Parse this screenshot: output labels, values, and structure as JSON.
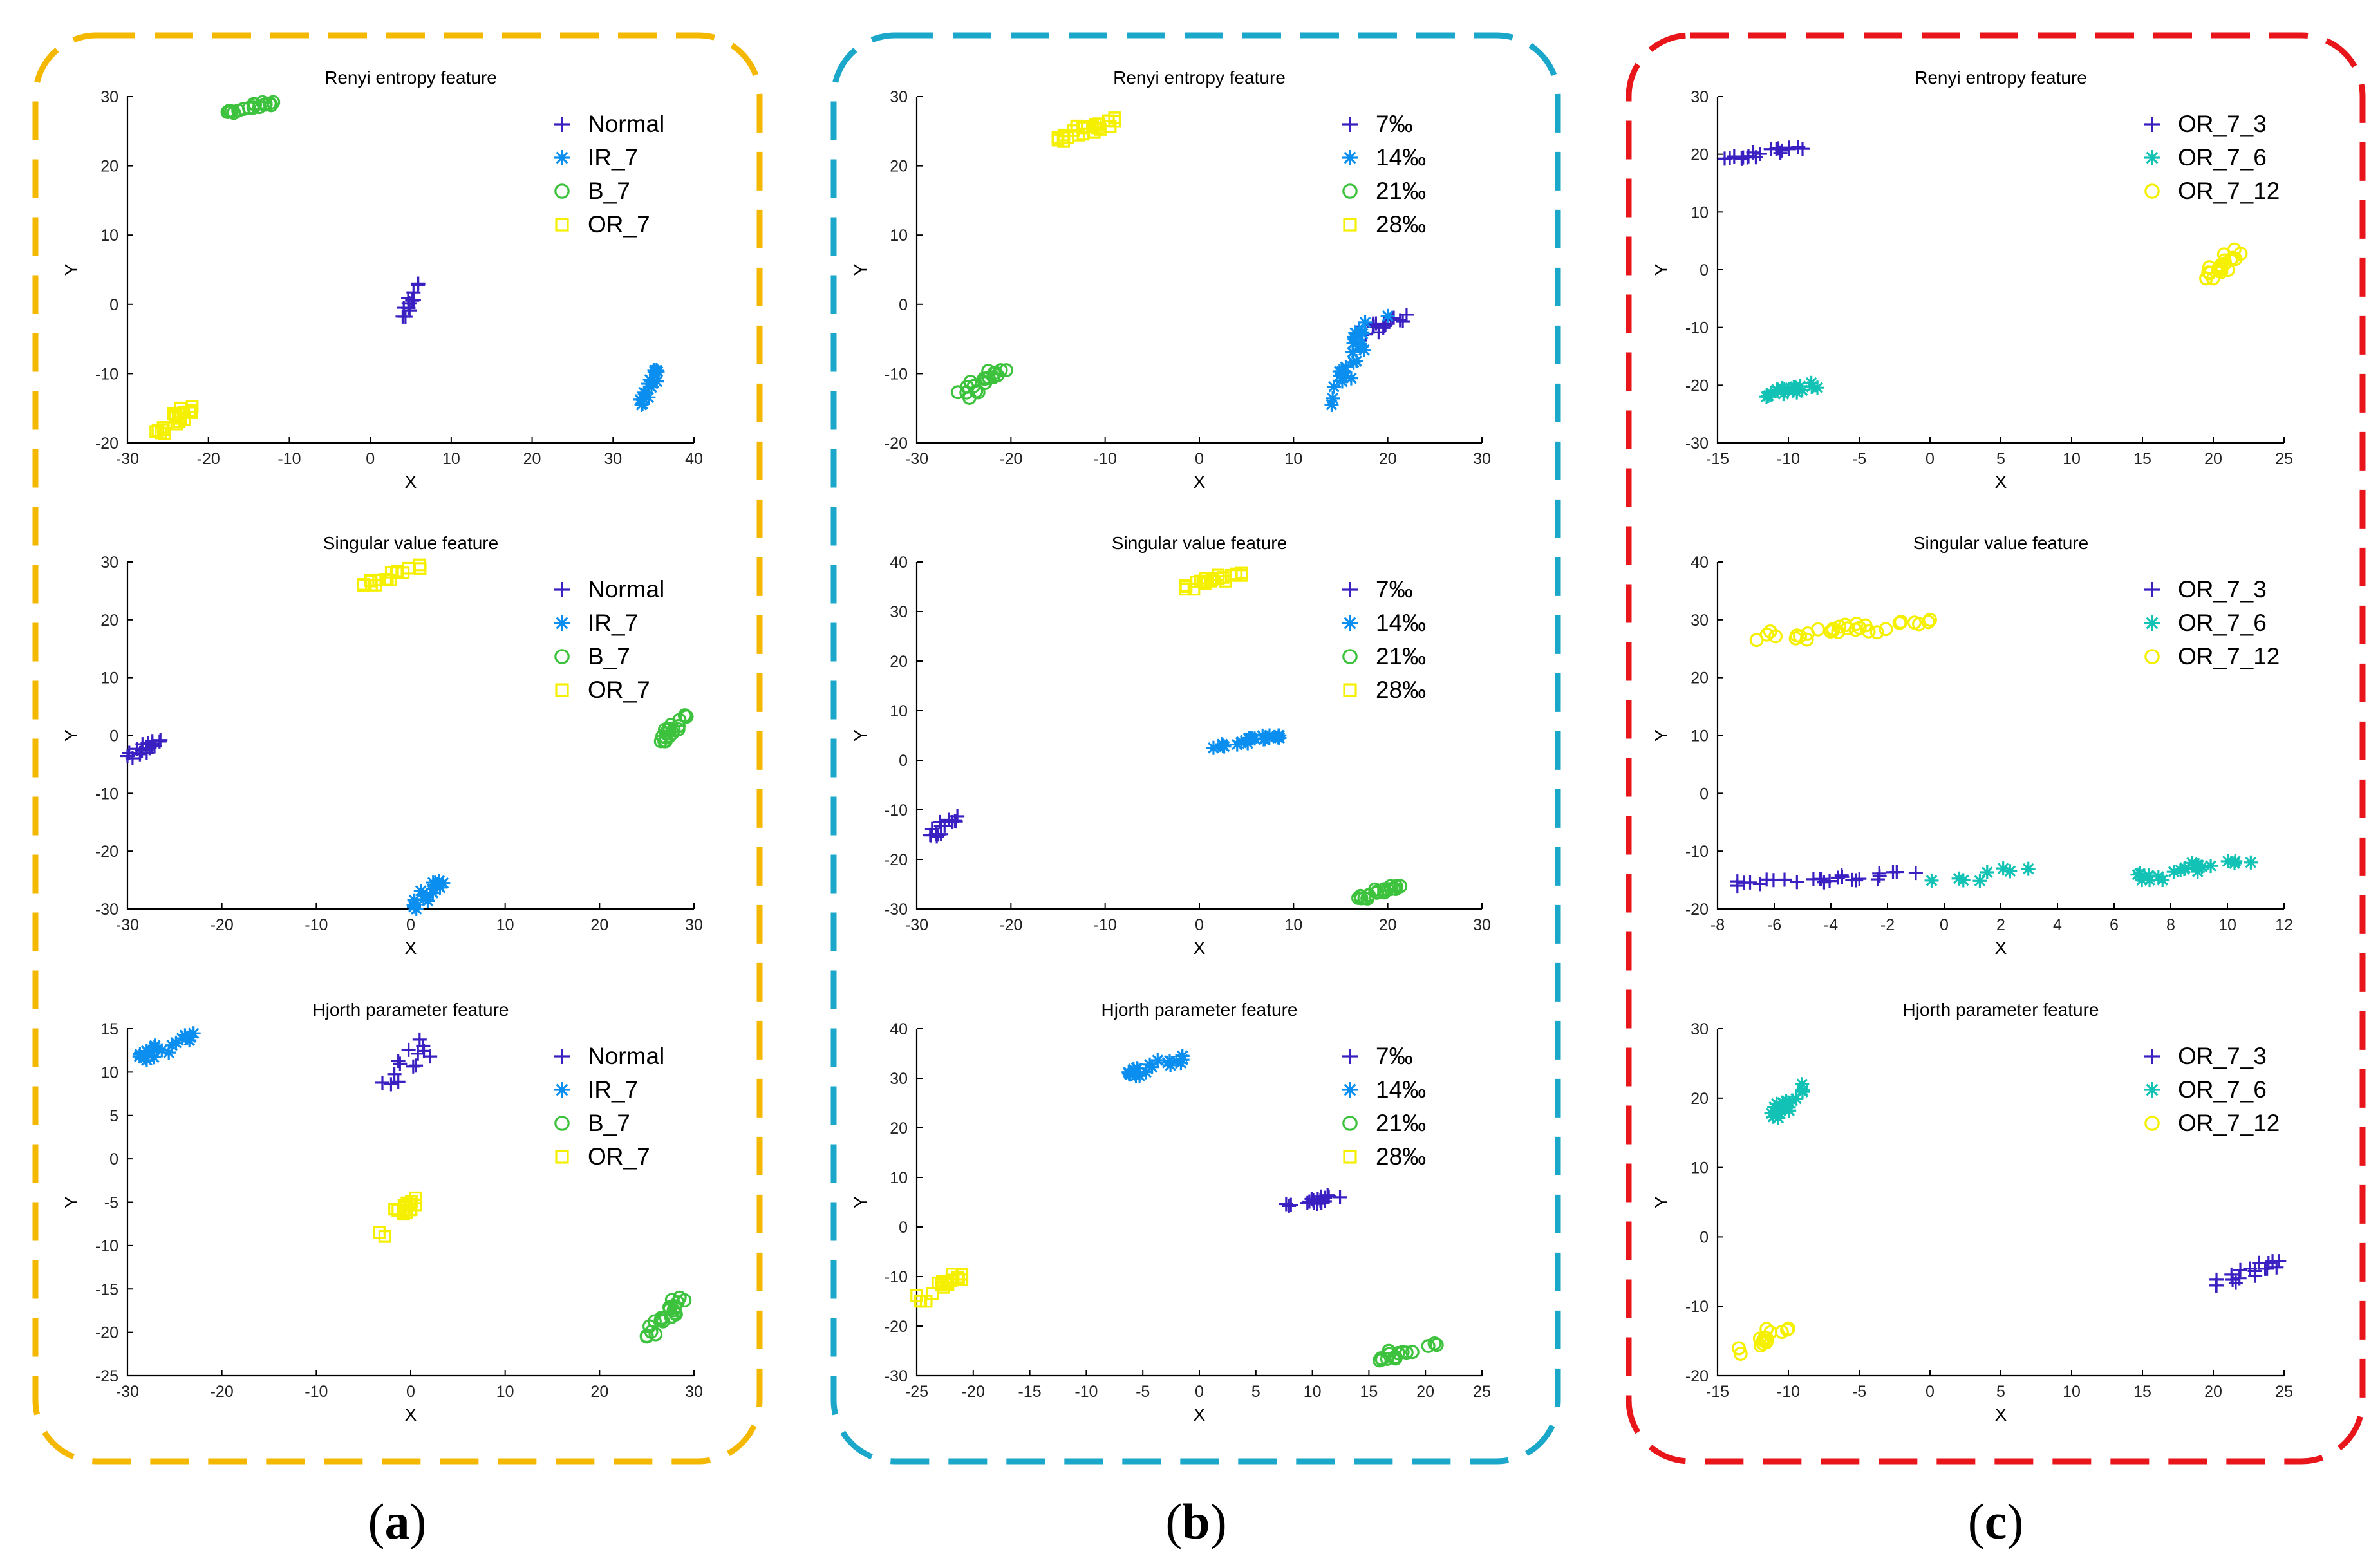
{
  "colors": {
    "frame_a": "#F5B800",
    "frame_b": "#1AA7C9",
    "frame_c": "#E8161B",
    "blue_dark": "#3A1FC1",
    "blue_light": "#0A8FF0",
    "green": "#3DC23D",
    "yellow": "#F5F000",
    "teal": "#11C2B5"
  },
  "panels": [
    {
      "caption_letter": "a"
    },
    {
      "caption_letter": "b"
    },
    {
      "caption_letter": "c"
    }
  ],
  "chart_data": [
    {
      "type": "scatter",
      "panel": 0,
      "row": 0,
      "title": "Renyi entropy feature",
      "xlabel": "X",
      "ylabel": "Y",
      "xlim": [
        -30,
        40
      ],
      "ylim": [
        -20,
        30
      ],
      "xticks": [
        -30,
        -20,
        -10,
        0,
        10,
        20,
        30,
        40
      ],
      "yticks": [
        -20,
        -10,
        0,
        10,
        20,
        30
      ],
      "legend": "top-right",
      "series": [
        {
          "name": "Normal",
          "marker": "plus",
          "color": "#3A1FC1",
          "clusters": [
            {
              "x": [
                4,
                6
              ],
              "y": [
                -2,
                3
              ],
              "n": 16
            }
          ]
        },
        {
          "name": "IR_7",
          "marker": "asterisk",
          "color": "#0A8FF0",
          "clusters": [
            {
              "x": [
                33,
                35.5
              ],
              "y": [
                -15,
                -9.5
              ],
              "n": 16
            }
          ]
        },
        {
          "name": "B_7",
          "marker": "circle",
          "color": "#3DC23D",
          "clusters": [
            {
              "x": [
                -18,
                -12
              ],
              "y": [
                27.5,
                29.2
              ],
              "n": 18
            }
          ]
        },
        {
          "name": "OR_7",
          "marker": "square",
          "color": "#F5F000",
          "clusters": [
            {
              "x": [
                -26.5,
                -22
              ],
              "y": [
                -19,
                -14.5
              ],
              "n": 20
            }
          ]
        }
      ]
    },
    {
      "type": "scatter",
      "panel": 0,
      "row": 1,
      "title": "Singular value feature",
      "xlabel": "X",
      "ylabel": "Y",
      "xlim": [
        -30,
        30
      ],
      "ylim": [
        -30,
        30
      ],
      "xticks": [
        -30,
        -20,
        -10,
        0,
        10,
        20,
        30
      ],
      "yticks": [
        -30,
        -20,
        -10,
        0,
        10,
        20,
        30
      ],
      "legend": "top-right",
      "series": [
        {
          "name": "Normal",
          "marker": "plus",
          "color": "#3A1FC1",
          "clusters": [
            {
              "x": [
                -30,
                -26
              ],
              "y": [
                -4,
                0
              ],
              "n": 18
            }
          ]
        },
        {
          "name": "IR_7",
          "marker": "asterisk",
          "color": "#0A8FF0",
          "clusters": [
            {
              "x": [
                0,
                3.5
              ],
              "y": [
                -30,
                -25
              ],
              "n": 16
            }
          ]
        },
        {
          "name": "B_7",
          "marker": "circle",
          "color": "#3DC23D",
          "clusters": [
            {
              "x": [
                26.5,
                29.5
              ],
              "y": [
                -1,
                3.5
              ],
              "n": 20
            }
          ]
        },
        {
          "name": "OR_7",
          "marker": "square",
          "color": "#F5F000",
          "clusters": [
            {
              "x": [
                -5,
                1
              ],
              "y": [
                26,
                29.5
              ],
              "n": 20
            }
          ]
        }
      ]
    },
    {
      "type": "scatter",
      "panel": 0,
      "row": 2,
      "title": "Hjorth parameter feature",
      "xlabel": "X",
      "ylabel": "Y",
      "xlim": [
        -30,
        30
      ],
      "ylim": [
        -25,
        15
      ],
      "xticks": [
        -30,
        -20,
        -10,
        0,
        10,
        20,
        30
      ],
      "yticks": [
        -25,
        -20,
        -15,
        -10,
        -5,
        0,
        5,
        10,
        15
      ],
      "legend": "top-right",
      "series": [
        {
          "name": "Normal",
          "marker": "plus",
          "color": "#3A1FC1",
          "clusters": [
            {
              "x": [
                -3,
                2.5
              ],
              "y": [
                8,
                14
              ],
              "n": 14
            }
          ]
        },
        {
          "name": "IR_7",
          "marker": "asterisk",
          "color": "#0A8FF0",
          "clusters": [
            {
              "x": [
                -29.5,
                -23
              ],
              "y": [
                11,
                14.5
              ],
              "n": 20
            }
          ]
        },
        {
          "name": "B_7",
          "marker": "circle",
          "color": "#3DC23D",
          "clusters": [
            {
              "x": [
                25,
                29
              ],
              "y": [
                -20.5,
                -16
              ],
              "n": 22
            }
          ]
        },
        {
          "name": "OR_7",
          "marker": "square",
          "color": "#F5F000",
          "clusters": [
            {
              "x": [
                -4,
                0.5
              ],
              "y": [
                -9,
                -4.5
              ],
              "n": 18
            }
          ]
        }
      ]
    },
    {
      "type": "scatter",
      "panel": 1,
      "row": 0,
      "title": "Renyi entropy feature",
      "xlabel": "X",
      "ylabel": "Y",
      "xlim": [
        -30,
        30
      ],
      "ylim": [
        -20,
        30
      ],
      "xticks": [
        -30,
        -20,
        -10,
        0,
        10,
        20,
        30
      ],
      "yticks": [
        -20,
        -10,
        0,
        10,
        20,
        30
      ],
      "legend": "top-right",
      "series": [
        {
          "name": "7‰",
          "marker": "plus",
          "color": "#3A1FC1",
          "clusters": [
            {
              "x": [
                16.5,
                22
              ],
              "y": [
                -4.5,
                -1.5
              ],
              "n": 18
            }
          ]
        },
        {
          "name": "14‰",
          "marker": "asterisk",
          "color": "#0A8FF0",
          "clusters": [
            {
              "x": [
                13.5,
                17.5
              ],
              "y": [
                -14.5,
                -5
              ],
              "n": 18
            },
            {
              "x": [
                16,
                20
              ],
              "y": [
                -5,
                -1
              ],
              "n": 8
            }
          ]
        },
        {
          "name": "21‰",
          "marker": "circle",
          "color": "#3DC23D",
          "clusters": [
            {
              "x": [
                -26,
                -20.5
              ],
              "y": [
                -13.5,
                -9.5
              ],
              "n": 20
            }
          ]
        },
        {
          "name": "28‰",
          "marker": "square",
          "color": "#F5F000",
          "clusters": [
            {
              "x": [
                -15,
                -9
              ],
              "y": [
                23.5,
                27
              ],
              "n": 24
            }
          ]
        }
      ]
    },
    {
      "type": "scatter",
      "panel": 1,
      "row": 1,
      "title": "Singular value feature",
      "xlabel": "X",
      "ylabel": "Y",
      "xlim": [
        -30,
        30
      ],
      "ylim": [
        -30,
        40
      ],
      "xticks": [
        -30,
        -20,
        -10,
        0,
        10,
        20,
        30
      ],
      "yticks": [
        -30,
        -20,
        -10,
        0,
        10,
        20,
        30,
        40
      ],
      "legend": "top-right",
      "series": [
        {
          "name": "7‰",
          "marker": "plus",
          "color": "#3A1FC1",
          "clusters": [
            {
              "x": [
                -29,
                -25
              ],
              "y": [
                -16,
                -11
              ],
              "n": 16
            }
          ]
        },
        {
          "name": "14‰",
          "marker": "asterisk",
          "color": "#0A8FF0",
          "clusters": [
            {
              "x": [
                1.5,
                8.5
              ],
              "y": [
                2.5,
                5
              ],
              "n": 22
            }
          ]
        },
        {
          "name": "21‰",
          "marker": "circle",
          "color": "#3DC23D",
          "clusters": [
            {
              "x": [
                16.5,
                22
              ],
              "y": [
                -28,
                -24.5
              ],
              "n": 20
            }
          ]
        },
        {
          "name": "28‰",
          "marker": "square",
          "color": "#F5F000",
          "clusters": [
            {
              "x": [
                -1.5,
                4.5
              ],
              "y": [
                34.5,
                38
              ],
              "n": 24
            }
          ]
        }
      ]
    },
    {
      "type": "scatter",
      "panel": 1,
      "row": 2,
      "title": "Hjorth parameter feature",
      "xlabel": "X",
      "ylabel": "Y",
      "xlim": [
        -25,
        25
      ],
      "ylim": [
        -30,
        40
      ],
      "xticks": [
        -25,
        -20,
        -15,
        -10,
        -5,
        0,
        5,
        10,
        15,
        20,
        25
      ],
      "yticks": [
        -30,
        -20,
        -10,
        0,
        10,
        20,
        30,
        40
      ],
      "legend": "top-right",
      "series": [
        {
          "name": "7‰",
          "marker": "plus",
          "color": "#3A1FC1",
          "clusters": [
            {
              "x": [
                6.5,
                12.5
              ],
              "y": [
                3.5,
                6.5
              ],
              "n": 18
            }
          ]
        },
        {
          "name": "14‰",
          "marker": "asterisk",
          "color": "#0A8FF0",
          "clusters": [
            {
              "x": [
                -7,
                -1.5
              ],
              "y": [
                30.5,
                34.5
              ],
              "n": 20
            }
          ]
        },
        {
          "name": "21‰",
          "marker": "circle",
          "color": "#3DC23D",
          "clusters": [
            {
              "x": [
                15.5,
                21
              ],
              "y": [
                -27,
                -23.5
              ],
              "n": 16
            }
          ]
        },
        {
          "name": "28‰",
          "marker": "square",
          "color": "#F5F000",
          "clusters": [
            {
              "x": [
                -25,
                -21
              ],
              "y": [
                -15,
                -9.5
              ],
              "n": 20
            }
          ]
        }
      ]
    },
    {
      "type": "scatter",
      "panel": 2,
      "row": 0,
      "title": "Renyi entropy feature",
      "xlabel": "X",
      "ylabel": "Y",
      "xlim": [
        -15,
        25
      ],
      "ylim": [
        -30,
        30
      ],
      "xticks": [
        -15,
        -10,
        -5,
        0,
        5,
        10,
        15,
        20,
        25
      ],
      "yticks": [
        -30,
        -20,
        -10,
        0,
        10,
        20,
        30
      ],
      "legend": "top-right",
      "series": [
        {
          "name": "OR_7_3",
          "marker": "plus",
          "color": "#3A1FC1",
          "clusters": [
            {
              "x": [
                -14.5,
                -9
              ],
              "y": [
                19,
                21.5
              ],
              "n": 20
            }
          ]
        },
        {
          "name": "OR_7_6",
          "marker": "asterisk",
          "color": "#11C2B5",
          "clusters": [
            {
              "x": [
                -12.5,
                -7.5
              ],
              "y": [
                -22,
                -19.5
              ],
              "n": 18
            }
          ]
        },
        {
          "name": "OR_7_12",
          "marker": "circle",
          "color": "#F5F000",
          "clusters": [
            {
              "x": [
                19.5,
                22
              ],
              "y": [
                -1.5,
                3.5
              ],
              "n": 20
            }
          ]
        }
      ]
    },
    {
      "type": "scatter",
      "panel": 2,
      "row": 1,
      "title": "Singular value feature",
      "xlabel": "X",
      "ylabel": "Y",
      "xlim": [
        -8,
        12
      ],
      "ylim": [
        -20,
        40
      ],
      "xticks": [
        -8,
        -6,
        -4,
        -2,
        0,
        2,
        4,
        6,
        8,
        10,
        12
      ],
      "yticks": [
        -20,
        -10,
        0,
        10,
        20,
        30,
        40
      ],
      "legend": "top-right",
      "series": [
        {
          "name": "OR_7_3",
          "marker": "plus",
          "color": "#3A1FC1",
          "clusters": [
            {
              "x": [
                -7.3,
                -1
              ],
              "y": [
                -16,
                -13.5
              ],
              "n": 26
            }
          ]
        },
        {
          "name": "OR_7_6",
          "marker": "asterisk",
          "color": "#11C2B5",
          "clusters": [
            {
              "x": [
                -1.5,
                3.5
              ],
              "y": [
                -16,
                -13
              ],
              "n": 8
            },
            {
              "x": [
                6.5,
                11
              ],
              "y": [
                -15,
                -11
              ],
              "n": 22
            }
          ]
        },
        {
          "name": "OR_7_12",
          "marker": "circle",
          "color": "#F5F000",
          "clusters": [
            {
              "x": [
                -7,
                -0.5
              ],
              "y": [
                26.5,
                30
              ],
              "n": 30
            }
          ]
        }
      ]
    },
    {
      "type": "scatter",
      "panel": 2,
      "row": 2,
      "title": "Hjorth parameter feature",
      "xlabel": "X",
      "ylabel": "Y",
      "xlim": [
        -15,
        25
      ],
      "ylim": [
        -20,
        30
      ],
      "xticks": [
        -15,
        -10,
        -5,
        0,
        5,
        10,
        15,
        20,
        25
      ],
      "yticks": [
        -20,
        -10,
        0,
        10,
        20,
        30
      ],
      "legend": "top-right",
      "series": [
        {
          "name": "OR_7_3",
          "marker": "plus",
          "color": "#3A1FC1",
          "clusters": [
            {
              "x": [
                20,
                25
              ],
              "y": [
                -7,
                -3.5
              ],
              "n": 18
            }
          ]
        },
        {
          "name": "OR_7_6",
          "marker": "asterisk",
          "color": "#11C2B5",
          "clusters": [
            {
              "x": [
                -11.5,
                -9
              ],
              "y": [
                16.5,
                22
              ],
              "n": 18
            }
          ]
        },
        {
          "name": "OR_7_12",
          "marker": "circle",
          "color": "#F5F000",
          "clusters": [
            {
              "x": [
                -13.5,
                -10
              ],
              "y": [
                -17,
                -12.5
              ],
              "n": 16
            }
          ]
        }
      ]
    }
  ]
}
